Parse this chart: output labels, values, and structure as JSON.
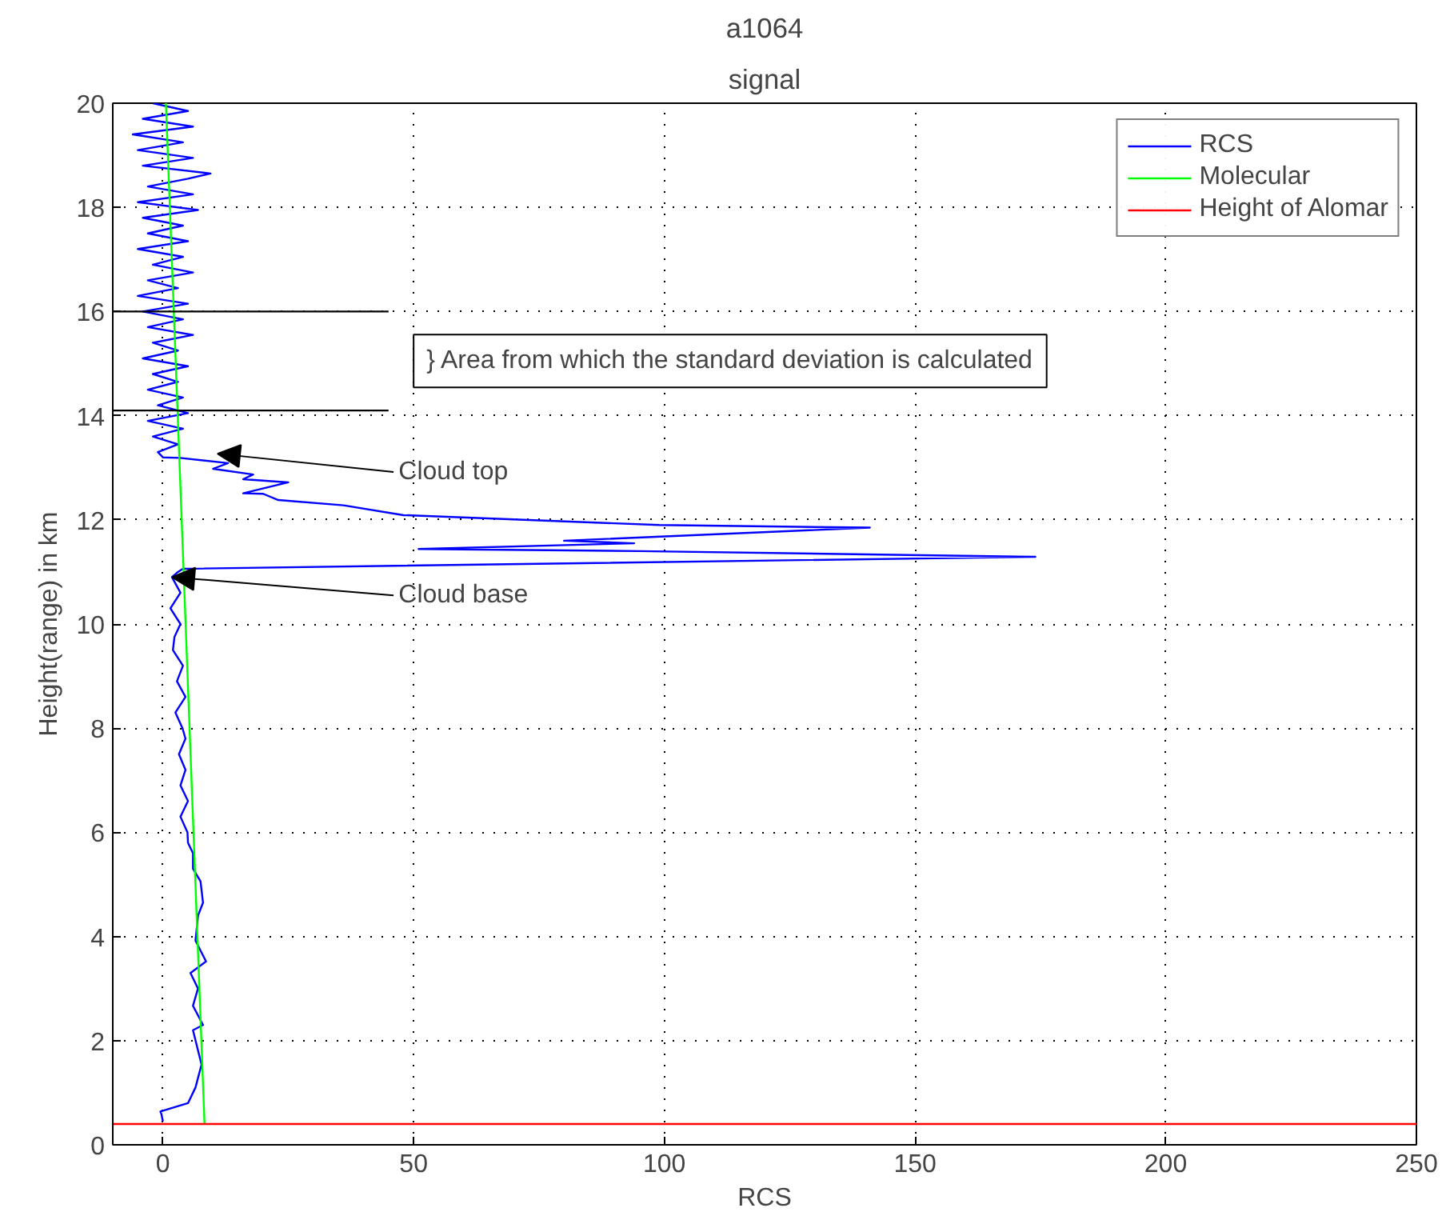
{
  "chart_data": {
    "type": "line",
    "title": "a1064",
    "subtitle": "signal",
    "xlabel": "RCS",
    "ylabel": "Height(range) in km",
    "xlim": [
      -10,
      250
    ],
    "ylim": [
      0,
      20
    ],
    "xticks": [
      0,
      50,
      100,
      150,
      200,
      250
    ],
    "yticks": [
      0,
      2,
      4,
      6,
      8,
      10,
      12,
      14,
      16,
      18,
      20
    ],
    "grid": true,
    "legend": "top right",
    "series": [
      {
        "name": "RCS",
        "color": "#0000ff",
        "x": [
          0,
          -0.3,
          -0.5,
          5,
          6.5,
          7.7,
          6,
          8,
          6,
          7,
          5.5,
          8.6,
          6.5,
          7,
          8,
          7.5,
          6,
          6,
          5,
          4.9,
          3.5,
          5,
          3.5,
          4.5,
          3.2,
          4.5,
          3.9,
          2.5,
          4.5,
          2.8,
          4,
          2,
          2.3,
          3.5,
          1.5,
          3.5,
          1.8,
          3,
          4,
          174,
          95,
          51,
          94,
          80,
          141,
          99,
          48,
          36,
          23,
          20,
          16,
          25,
          16,
          18,
          10,
          13,
          3.4,
          0,
          -1,
          3,
          -2,
          4,
          -3,
          5,
          -1,
          4,
          -3,
          3,
          -2,
          5,
          -4,
          3,
          -2,
          6,
          -3,
          4,
          -4,
          5,
          -5,
          3,
          -3,
          6,
          -2,
          4,
          -5,
          5,
          -3,
          4,
          -4,
          7,
          -5,
          6,
          -3,
          5,
          9.5,
          -4,
          6,
          -5,
          4,
          -6,
          6,
          -4,
          5,
          -2
        ],
        "values": [
          0.45,
          0.59,
          0.64,
          0.8,
          1.1,
          1.54,
          2.2,
          2.3,
          2.67,
          3.0,
          3.3,
          3.52,
          3.92,
          4.4,
          4.65,
          5.06,
          5.3,
          5.6,
          5.8,
          6.0,
          6.3,
          6.6,
          6.9,
          7.2,
          7.5,
          7.8,
          8.0,
          8.3,
          8.6,
          8.9,
          9.2,
          9.5,
          9.75,
          10.0,
          10.3,
          10.6,
          10.9,
          11.0,
          11.06,
          11.29,
          11.4,
          11.44,
          11.55,
          11.6,
          11.85,
          11.9,
          12.09,
          12.28,
          12.38,
          12.5,
          12.51,
          12.72,
          12.78,
          12.87,
          12.98,
          13.09,
          13.19,
          13.2,
          13.3,
          13.45,
          13.6,
          13.75,
          13.9,
          14.05,
          14.2,
          14.35,
          14.5,
          14.65,
          14.8,
          14.95,
          15.1,
          15.25,
          15.4,
          15.55,
          15.7,
          15.85,
          16.0,
          16.15,
          16.3,
          16.45,
          16.6,
          16.75,
          16.9,
          17.05,
          17.2,
          17.35,
          17.5,
          17.65,
          17.8,
          17.95,
          18.1,
          18.25,
          18.4,
          18.55,
          18.65,
          18.8,
          18.95,
          19.1,
          19.25,
          19.4,
          19.55,
          19.7,
          19.85,
          20.0
        ]
      },
      {
        "name": "Molecular",
        "color": "#00ff00",
        "x": [
          8.3,
          0.6
        ],
        "values": [
          0.4,
          20
        ]
      },
      {
        "name": "Height of Alomar",
        "color": "#ff0000",
        "x": [
          -10,
          250
        ],
        "values": [
          0.4,
          0.4
        ]
      },
      {
        "color": "#000000",
        "x": [
          -10,
          45
        ],
        "values": [
          16,
          16
        ]
      },
      {
        "color": "#000000",
        "x": [
          -10,
          45
        ],
        "values": [
          14.1,
          14.1
        ]
      }
    ],
    "annotations": [
      "} Area from which the standard deviation is calculated",
      {
        "text": "Cloud top",
        "x": 10.9,
        "y": 13.27
      },
      {
        "text": "Cloud base",
        "x": 1.8,
        "y": 10.9
      }
    ]
  }
}
